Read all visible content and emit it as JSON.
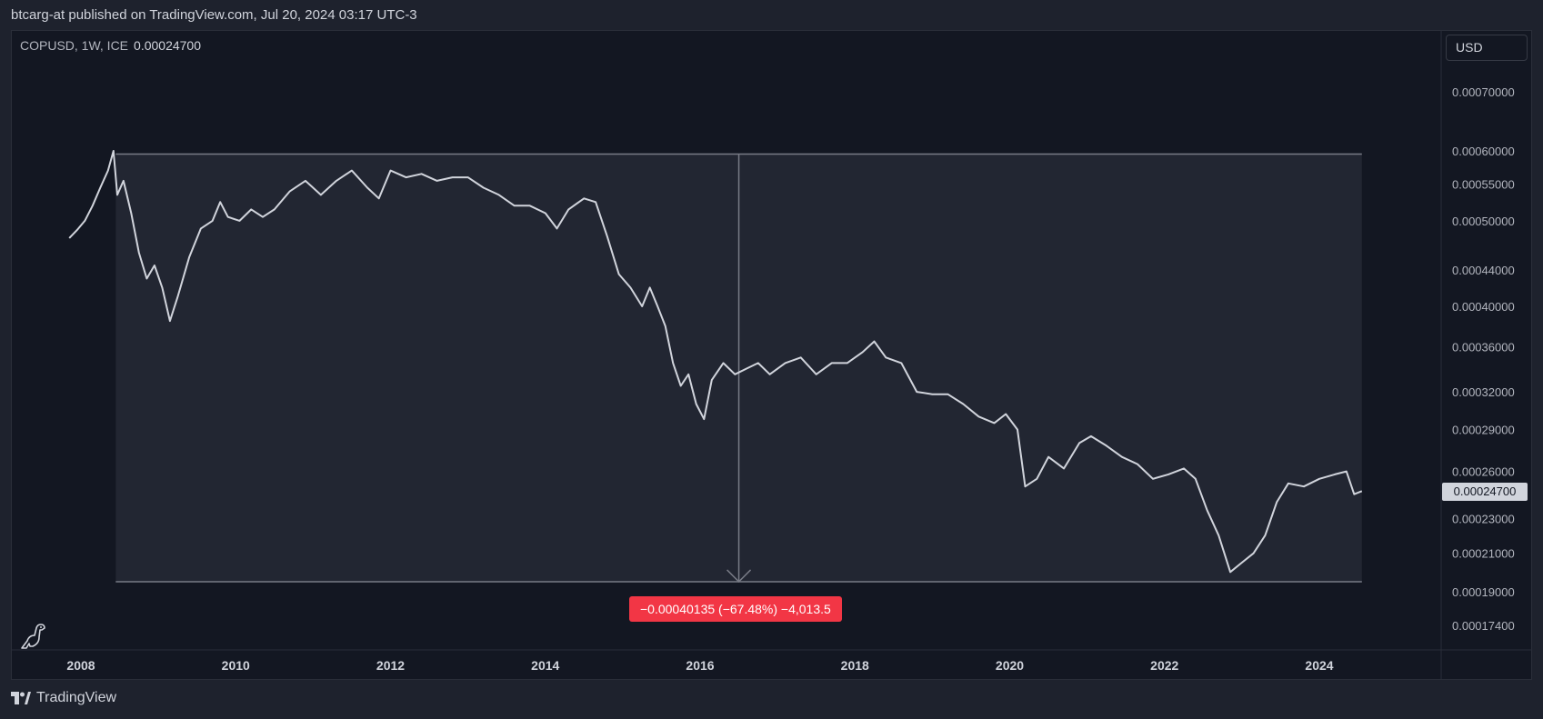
{
  "header": {
    "published_text": "btcarg-at published on TradingView.com, Jul 20, 2024 03:17 UTC-3"
  },
  "legend": {
    "symbol_info": "COPUSD, 1W, ICE",
    "last_value": "0.00024700"
  },
  "price_scale": {
    "currency_label": "USD"
  },
  "footer": {
    "brand": "TradingView"
  },
  "measure_tool": {
    "label": "−0.00040135 (−67.48%) −4,013.5"
  },
  "colors": {
    "background": "#131722",
    "page": "#1e222d",
    "line": "#d1d4dc",
    "measure_fill": "#262935",
    "measure_border": "#787b86",
    "measure_label": "#f23645"
  },
  "icons": [
    "tradingview-dino-icon",
    "tradingview-logo-icon",
    "arrow-down-icon"
  ],
  "chart_data": {
    "type": "line",
    "symbol": "COPUSD",
    "interval": "1W",
    "y_scale": "log",
    "ylim": [
      0.000162,
      0.000808
    ],
    "xlim": [
      2007.6,
      2026.5
    ],
    "y_ticks": [
      "0.00070000",
      "0.00060000",
      "0.00055000",
      "0.00050000",
      "0.00044000",
      "0.00040000",
      "0.00036000",
      "0.00032000",
      "0.00029000",
      "0.00026000",
      "0.00023000",
      "0.00021000",
      "0.00019000",
      "0.00017400"
    ],
    "x_ticks": [
      "2008",
      "2010",
      "2012",
      "2014",
      "2016",
      "2018",
      "2020",
      "2022",
      "2024"
    ],
    "last_price": "0.00024700",
    "measure_range": {
      "x_start": 2008.45,
      "x_end": 2024.55,
      "y_top": 0.000595,
      "y_bottom": 0.000195
    },
    "series": [
      {
        "name": "COPUSD",
        "points": [
          [
            2007.85,
            0.000478
          ],
          [
            2007.95,
            0.000488
          ],
          [
            2008.05,
            0.0005
          ],
          [
            2008.15,
            0.00052
          ],
          [
            2008.25,
            0.000545
          ],
          [
            2008.35,
            0.00057
          ],
          [
            2008.42,
            0.0006
          ],
          [
            2008.47,
            0.000535
          ],
          [
            2008.55,
            0.000555
          ],
          [
            2008.65,
            0.00051
          ],
          [
            2008.75,
            0.00046
          ],
          [
            2008.85,
            0.00043
          ],
          [
            2008.95,
            0.000445
          ],
          [
            2009.05,
            0.00042
          ],
          [
            2009.15,
            0.000385
          ],
          [
            2009.25,
            0.00041
          ],
          [
            2009.4,
            0.000455
          ],
          [
            2009.55,
            0.00049
          ],
          [
            2009.7,
            0.0005
          ],
          [
            2009.8,
            0.000525
          ],
          [
            2009.9,
            0.000505
          ],
          [
            2010.05,
            0.0005
          ],
          [
            2010.2,
            0.000515
          ],
          [
            2010.35,
            0.000505
          ],
          [
            2010.5,
            0.000515
          ],
          [
            2010.7,
            0.00054
          ],
          [
            2010.9,
            0.000555
          ],
          [
            2011.1,
            0.000535
          ],
          [
            2011.3,
            0.000555
          ],
          [
            2011.5,
            0.00057
          ],
          [
            2011.7,
            0.000545
          ],
          [
            2011.85,
            0.00053
          ],
          [
            2012.0,
            0.00057
          ],
          [
            2012.2,
            0.00056
          ],
          [
            2012.4,
            0.000565
          ],
          [
            2012.6,
            0.000555
          ],
          [
            2012.8,
            0.00056
          ],
          [
            2013.0,
            0.00056
          ],
          [
            2013.2,
            0.000545
          ],
          [
            2013.4,
            0.000535
          ],
          [
            2013.6,
            0.00052
          ],
          [
            2013.8,
            0.00052
          ],
          [
            2014.0,
            0.00051
          ],
          [
            2014.15,
            0.00049
          ],
          [
            2014.3,
            0.000515
          ],
          [
            2014.5,
            0.00053
          ],
          [
            2014.65,
            0.000525
          ],
          [
            2014.8,
            0.00048
          ],
          [
            2014.95,
            0.000435
          ],
          [
            2015.1,
            0.00042
          ],
          [
            2015.25,
            0.0004
          ],
          [
            2015.35,
            0.00042
          ],
          [
            2015.45,
            0.0004
          ],
          [
            2015.55,
            0.00038
          ],
          [
            2015.65,
            0.000345
          ],
          [
            2015.75,
            0.000325
          ],
          [
            2015.85,
            0.000335
          ],
          [
            2015.95,
            0.00031
          ],
          [
            2016.05,
            0.000298
          ],
          [
            2016.15,
            0.00033
          ],
          [
            2016.3,
            0.000345
          ],
          [
            2016.45,
            0.000335
          ],
          [
            2016.6,
            0.00034
          ],
          [
            2016.75,
            0.000345
          ],
          [
            2016.9,
            0.000335
          ],
          [
            2017.1,
            0.000345
          ],
          [
            2017.3,
            0.00035
          ],
          [
            2017.5,
            0.000335
          ],
          [
            2017.7,
            0.000345
          ],
          [
            2017.9,
            0.000345
          ],
          [
            2018.1,
            0.000355
          ],
          [
            2018.25,
            0.000365
          ],
          [
            2018.4,
            0.00035
          ],
          [
            2018.6,
            0.000345
          ],
          [
            2018.8,
            0.00032
          ],
          [
            2019.0,
            0.000318
          ],
          [
            2019.2,
            0.000318
          ],
          [
            2019.4,
            0.00031
          ],
          [
            2019.6,
            0.0003
          ],
          [
            2019.8,
            0.000295
          ],
          [
            2019.95,
            0.000302
          ],
          [
            2020.1,
            0.00029
          ],
          [
            2020.2,
            0.00025
          ],
          [
            2020.35,
            0.000255
          ],
          [
            2020.5,
            0.00027
          ],
          [
            2020.7,
            0.000262
          ],
          [
            2020.9,
            0.00028
          ],
          [
            2021.05,
            0.000285
          ],
          [
            2021.25,
            0.000278
          ],
          [
            2021.45,
            0.00027
          ],
          [
            2021.65,
            0.000265
          ],
          [
            2021.85,
            0.000255
          ],
          [
            2022.05,
            0.000258
          ],
          [
            2022.25,
            0.000262
          ],
          [
            2022.4,
            0.000255
          ],
          [
            2022.55,
            0.000235
          ],
          [
            2022.7,
            0.00022
          ],
          [
            2022.85,
            0.0002
          ],
          [
            2023.0,
            0.000205
          ],
          [
            2023.15,
            0.00021
          ],
          [
            2023.3,
            0.00022
          ],
          [
            2023.45,
            0.00024
          ],
          [
            2023.6,
            0.000252
          ],
          [
            2023.8,
            0.00025
          ],
          [
            2024.0,
            0.000255
          ],
          [
            2024.2,
            0.000258
          ],
          [
            2024.35,
            0.00026
          ],
          [
            2024.45,
            0.000245
          ],
          [
            2024.55,
            0.000247
          ]
        ]
      }
    ]
  }
}
